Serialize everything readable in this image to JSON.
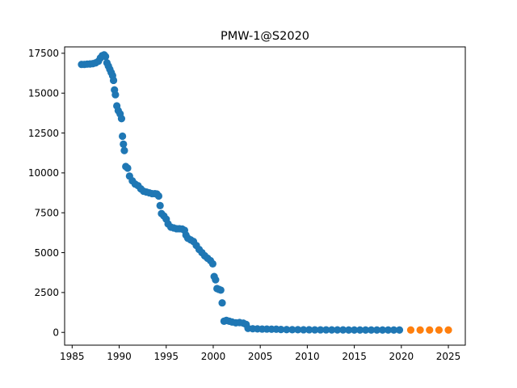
{
  "chart_data": {
    "type": "scatter",
    "title": "PMW-1@S2020",
    "xlabel": "",
    "ylabel": "",
    "xlim": [
      1984.2,
      2026.8
    ],
    "ylim": [
      -800,
      17900
    ],
    "xticks": [
      1985,
      1990,
      1995,
      2000,
      2005,
      2010,
      2015,
      2020,
      2025
    ],
    "yticks": [
      0,
      2500,
      5000,
      7500,
      10000,
      12500,
      15000,
      17500
    ],
    "grid": false,
    "legend": "none",
    "series": [
      {
        "color": "#1f77b4",
        "points": [
          [
            1986.0,
            16800
          ],
          [
            1986.3,
            16800
          ],
          [
            1986.6,
            16820
          ],
          [
            1986.9,
            16830
          ],
          [
            1987.2,
            16850
          ],
          [
            1987.5,
            16900
          ],
          [
            1987.8,
            17000
          ],
          [
            1988.0,
            17200
          ],
          [
            1988.2,
            17350
          ],
          [
            1988.4,
            17400
          ],
          [
            1988.55,
            17300
          ],
          [
            1988.7,
            16900
          ],
          [
            1988.85,
            16700
          ],
          [
            1989.0,
            16500
          ],
          [
            1989.15,
            16300
          ],
          [
            1989.3,
            16100
          ],
          [
            1989.4,
            15800
          ],
          [
            1989.5,
            15200
          ],
          [
            1989.6,
            14900
          ],
          [
            1989.75,
            14200
          ],
          [
            1989.9,
            13900
          ],
          [
            1990.1,
            13700
          ],
          [
            1990.25,
            13400
          ],
          [
            1990.35,
            12300
          ],
          [
            1990.45,
            11800
          ],
          [
            1990.55,
            11400
          ],
          [
            1990.7,
            10400
          ],
          [
            1990.9,
            10300
          ],
          [
            1991.1,
            9800
          ],
          [
            1991.4,
            9500
          ],
          [
            1991.7,
            9300
          ],
          [
            1992.0,
            9200
          ],
          [
            1992.3,
            9000
          ],
          [
            1992.6,
            8850
          ],
          [
            1992.9,
            8800
          ],
          [
            1993.2,
            8750
          ],
          [
            1993.5,
            8700
          ],
          [
            1993.8,
            8700
          ],
          [
            1994.0,
            8680
          ],
          [
            1994.2,
            8550
          ],
          [
            1994.35,
            7950
          ],
          [
            1994.5,
            7450
          ],
          [
            1994.75,
            7300
          ],
          [
            1995.0,
            7100
          ],
          [
            1995.2,
            6800
          ],
          [
            1995.5,
            6600
          ],
          [
            1995.8,
            6550
          ],
          [
            1996.1,
            6500
          ],
          [
            1996.4,
            6500
          ],
          [
            1996.7,
            6480
          ],
          [
            1996.95,
            6400
          ],
          [
            1997.1,
            6100
          ],
          [
            1997.3,
            5900
          ],
          [
            1997.6,
            5800
          ],
          [
            1997.9,
            5700
          ],
          [
            1998.2,
            5450
          ],
          [
            1998.5,
            5200
          ],
          [
            1998.8,
            5000
          ],
          [
            1999.1,
            4800
          ],
          [
            1999.4,
            4650
          ],
          [
            1999.7,
            4500
          ],
          [
            1999.95,
            4300
          ],
          [
            2000.1,
            3500
          ],
          [
            2000.25,
            3300
          ],
          [
            2000.4,
            2750
          ],
          [
            2000.6,
            2700
          ],
          [
            2000.8,
            2650
          ],
          [
            2000.95,
            1850
          ],
          [
            2001.15,
            700
          ],
          [
            2001.4,
            750
          ],
          [
            2001.7,
            700
          ],
          [
            2002.0,
            650
          ],
          [
            2002.4,
            600
          ],
          [
            2002.8,
            620
          ],
          [
            2003.2,
            580
          ],
          [
            2003.5,
            500
          ],
          [
            2003.7,
            250
          ],
          [
            2004.2,
            230
          ],
          [
            2004.7,
            220
          ],
          [
            2005.2,
            210
          ],
          [
            2005.7,
            210
          ],
          [
            2006.2,
            200
          ],
          [
            2006.7,
            200
          ],
          [
            2007.2,
            180
          ],
          [
            2007.8,
            175
          ],
          [
            2008.4,
            170
          ],
          [
            2009.0,
            170
          ],
          [
            2009.6,
            165
          ],
          [
            2010.2,
            165
          ],
          [
            2010.8,
            160
          ],
          [
            2011.4,
            160
          ],
          [
            2012.0,
            160
          ],
          [
            2012.6,
            155
          ],
          [
            2013.2,
            155
          ],
          [
            2013.8,
            155
          ],
          [
            2014.4,
            150
          ],
          [
            2015.0,
            150
          ],
          [
            2015.6,
            150
          ],
          [
            2016.2,
            150
          ],
          [
            2016.8,
            150
          ],
          [
            2017.4,
            150
          ],
          [
            2018.0,
            150
          ],
          [
            2018.6,
            150
          ],
          [
            2019.2,
            150
          ],
          [
            2019.8,
            150
          ]
        ]
      },
      {
        "color": "#ff7f0e",
        "points": [
          [
            2021,
            150
          ],
          [
            2022,
            150
          ],
          [
            2023,
            150
          ],
          [
            2024,
            150
          ],
          [
            2025,
            150
          ]
        ]
      }
    ]
  }
}
